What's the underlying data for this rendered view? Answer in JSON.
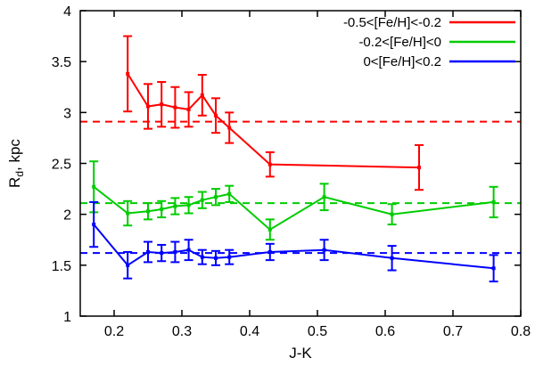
{
  "chart_data": {
    "type": "line",
    "title": "",
    "xlabel": "J-K",
    "ylabel": "R_d, kpc",
    "xlim": [
      0.15,
      0.8
    ],
    "ylim": [
      1,
      4
    ],
    "grid": false,
    "legend_position": "top-right",
    "xticks": [
      {
        "v": 0.2,
        "label": "0.2"
      },
      {
        "v": 0.3,
        "label": "0.3"
      },
      {
        "v": 0.4,
        "label": "0.4"
      },
      {
        "v": 0.5,
        "label": "0.5"
      },
      {
        "v": 0.6,
        "label": "0.6"
      },
      {
        "v": 0.7,
        "label": "0.7"
      },
      {
        "v": 0.8,
        "label": "0.8"
      }
    ],
    "yticks": [
      {
        "v": 1,
        "label": "1"
      },
      {
        "v": 1.5,
        "label": "1.5"
      },
      {
        "v": 2,
        "label": "2"
      },
      {
        "v": 2.5,
        "label": "2.5"
      },
      {
        "v": 3,
        "label": "3"
      },
      {
        "v": 3.5,
        "label": "3.5"
      },
      {
        "v": 4,
        "label": "4"
      }
    ],
    "series": [
      {
        "name": "-0.5<[Fe/H]<-0.2",
        "color": "#ff0000",
        "reference_line_y": 2.91,
        "points": [
          {
            "x": 0.22,
            "y": 3.38,
            "err": 0.37
          },
          {
            "x": 0.25,
            "y": 3.06,
            "err": 0.22
          },
          {
            "x": 0.27,
            "y": 3.08,
            "err": 0.22
          },
          {
            "x": 0.29,
            "y": 3.05,
            "err": 0.2
          },
          {
            "x": 0.31,
            "y": 3.03,
            "err": 0.17
          },
          {
            "x": 0.33,
            "y": 3.17,
            "err": 0.2
          },
          {
            "x": 0.35,
            "y": 2.97,
            "err": 0.17
          },
          {
            "x": 0.37,
            "y": 2.85,
            "err": 0.15
          },
          {
            "x": 0.43,
            "y": 2.49,
            "err": 0.12
          },
          {
            "x": 0.65,
            "y": 2.46,
            "err": 0.22
          }
        ]
      },
      {
        "name": "-0.2<[Fe/H]<0",
        "color": "#00cc00",
        "reference_line_y": 2.11,
        "points": [
          {
            "x": 0.17,
            "y": 2.27,
            "err": 0.25
          },
          {
            "x": 0.22,
            "y": 2.01,
            "err": 0.12
          },
          {
            "x": 0.25,
            "y": 2.03,
            "err": 0.08
          },
          {
            "x": 0.27,
            "y": 2.05,
            "err": 0.08
          },
          {
            "x": 0.29,
            "y": 2.08,
            "err": 0.08
          },
          {
            "x": 0.31,
            "y": 2.09,
            "err": 0.08
          },
          {
            "x": 0.33,
            "y": 2.14,
            "err": 0.08
          },
          {
            "x": 0.35,
            "y": 2.17,
            "err": 0.08
          },
          {
            "x": 0.37,
            "y": 2.2,
            "err": 0.08
          },
          {
            "x": 0.43,
            "y": 1.85,
            "err": 0.1
          },
          {
            "x": 0.51,
            "y": 2.17,
            "err": 0.13
          },
          {
            "x": 0.61,
            "y": 2.0,
            "err": 0.1
          },
          {
            "x": 0.76,
            "y": 2.12,
            "err": 0.15
          }
        ]
      },
      {
        "name": "0<[Fe/H]<0.2",
        "color": "#0000ff",
        "reference_line_y": 1.62,
        "points": [
          {
            "x": 0.17,
            "y": 1.9,
            "err": 0.22
          },
          {
            "x": 0.22,
            "y": 1.5,
            "err": 0.13
          },
          {
            "x": 0.25,
            "y": 1.63,
            "err": 0.1
          },
          {
            "x": 0.27,
            "y": 1.62,
            "err": 0.08
          },
          {
            "x": 0.29,
            "y": 1.63,
            "err": 0.1
          },
          {
            "x": 0.31,
            "y": 1.65,
            "err": 0.1
          },
          {
            "x": 0.33,
            "y": 1.58,
            "err": 0.07
          },
          {
            "x": 0.35,
            "y": 1.57,
            "err": 0.07
          },
          {
            "x": 0.37,
            "y": 1.58,
            "err": 0.07
          },
          {
            "x": 0.43,
            "y": 1.63,
            "err": 0.08
          },
          {
            "x": 0.51,
            "y": 1.65,
            "err": 0.1
          },
          {
            "x": 0.61,
            "y": 1.57,
            "err": 0.12
          },
          {
            "x": 0.76,
            "y": 1.47,
            "err": 0.13
          }
        ]
      }
    ]
  }
}
